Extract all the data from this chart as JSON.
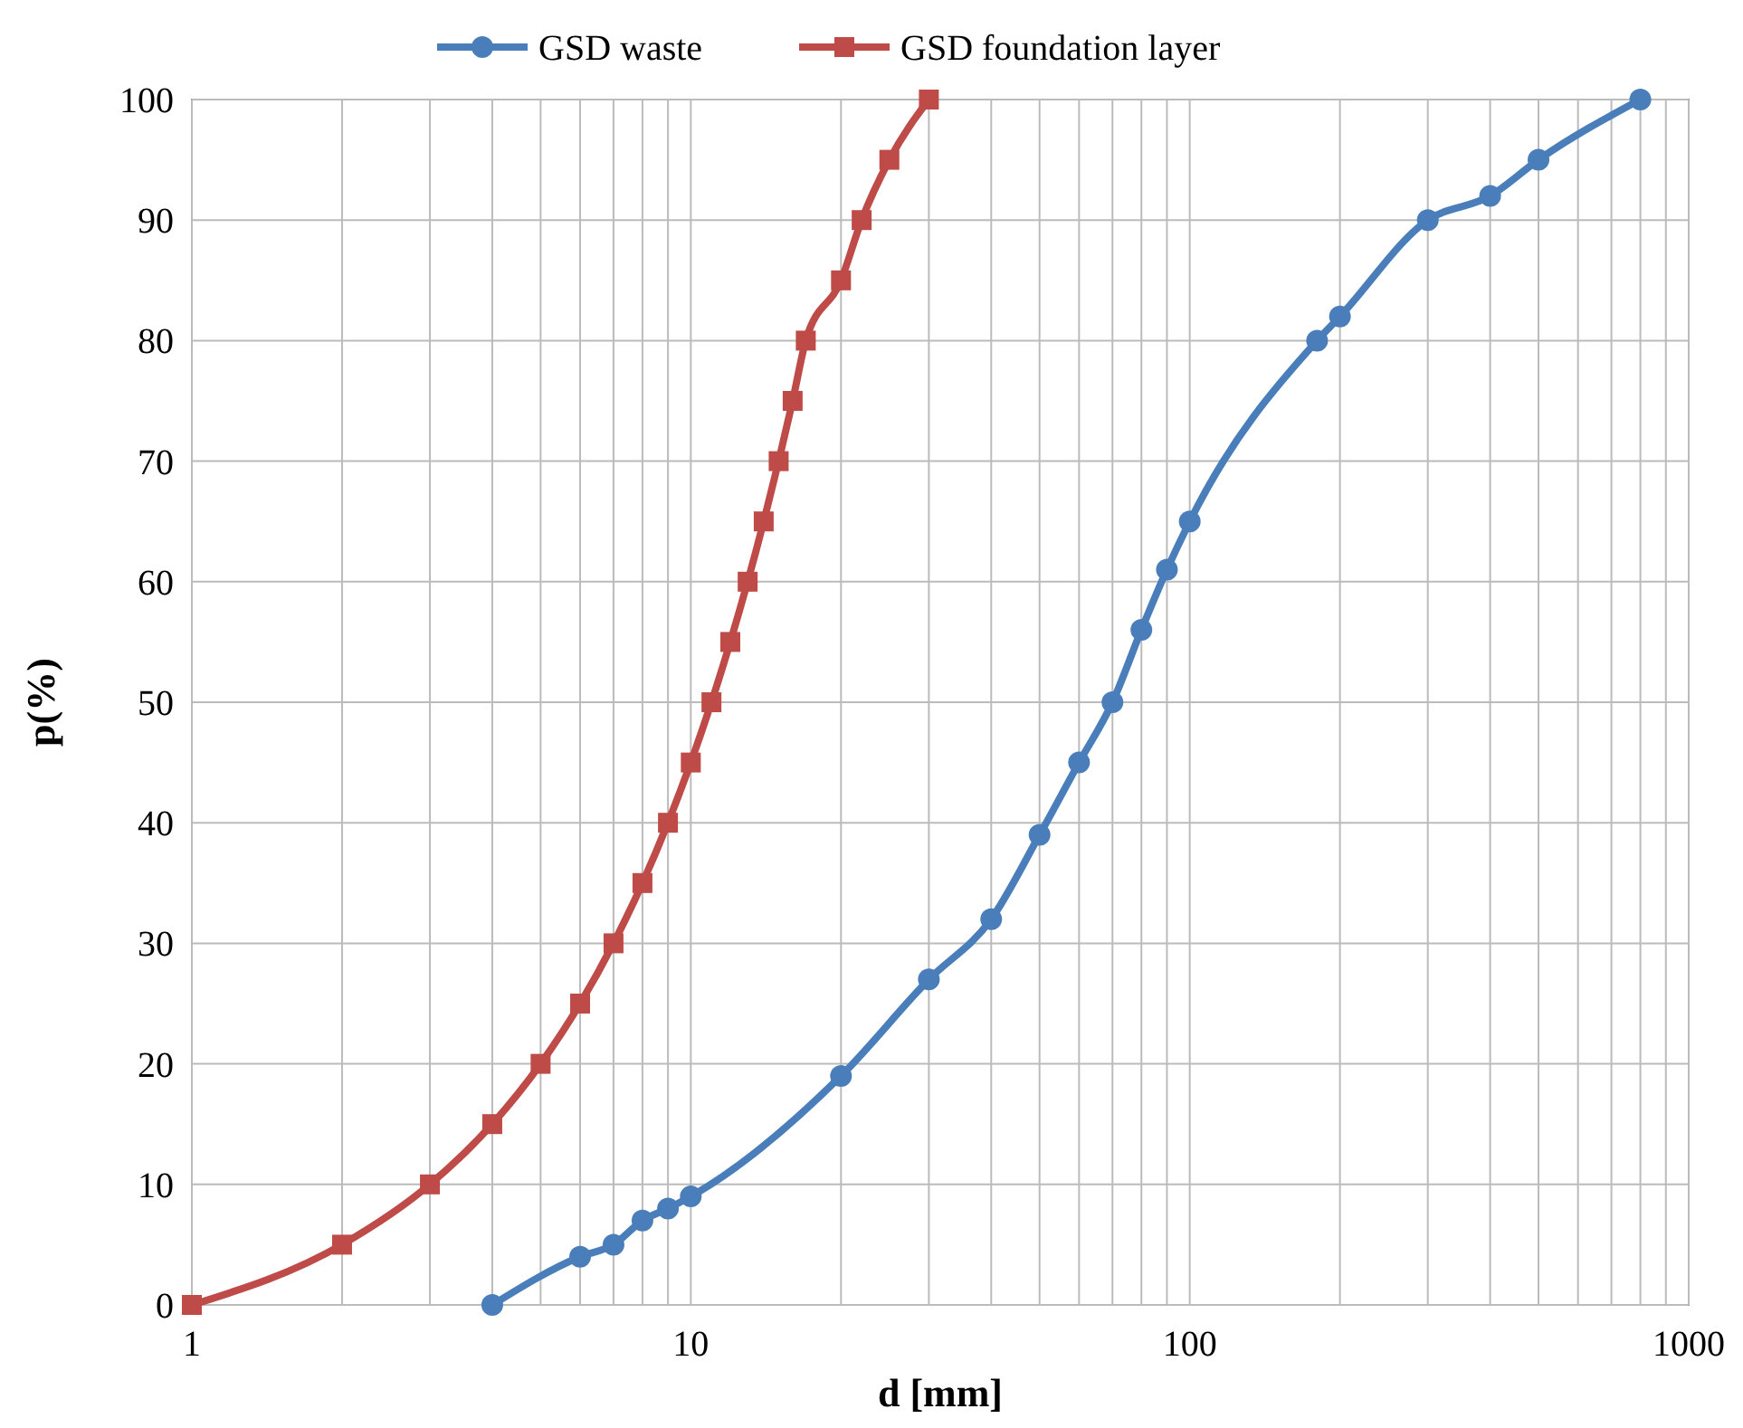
{
  "chart_data": {
    "type": "line",
    "xlabel": "d [mm]",
    "ylabel": "p(%)",
    "log": "x",
    "grid": true,
    "legend": "top",
    "xlim": [
      1,
      1000
    ],
    "xticks": [
      1,
      {
        "value": 2,
        "label": null
      },
      {
        "value": 3,
        "label": null
      },
      {
        "value": 4,
        "label": null
      },
      {
        "value": 5,
        "label": null
      },
      {
        "value": 6,
        "label": null
      },
      {
        "value": 7,
        "label": null
      },
      {
        "value": 8,
        "label": null
      },
      {
        "value": 9,
        "label": null
      },
      10,
      {
        "value": 20,
        "label": null
      },
      {
        "value": 30,
        "label": null
      },
      {
        "value": 40,
        "label": null
      },
      {
        "value": 50,
        "label": null
      },
      {
        "value": 60,
        "label": null
      },
      {
        "value": 70,
        "label": null
      },
      {
        "value": 80,
        "label": null
      },
      {
        "value": 90,
        "label": null
      },
      100,
      {
        "value": 200,
        "label": null
      },
      {
        "value": 300,
        "label": null
      },
      {
        "value": 400,
        "label": null
      },
      {
        "value": 500,
        "label": null
      },
      {
        "value": 600,
        "label": null
      },
      {
        "value": 700,
        "label": null
      },
      {
        "value": 800,
        "label": null
      },
      {
        "value": 900,
        "label": null
      },
      1000
    ],
    "ylim": [
      0,
      100
    ],
    "yticks": [
      0,
      10,
      20,
      30,
      40,
      50,
      60,
      70,
      80,
      90,
      100
    ],
    "series": [
      {
        "name": "GSD waste",
        "color": "#4a7ebb",
        "marker": "circle",
        "x": [
          4,
          6,
          7,
          8,
          9,
          10,
          20,
          30,
          40,
          50,
          60,
          70,
          80,
          90,
          100,
          180,
          200,
          300,
          400,
          500,
          800
        ],
        "values": [
          0,
          4,
          5,
          7,
          8,
          9,
          19,
          27,
          32,
          39,
          45,
          50,
          56,
          61,
          65,
          80,
          82,
          90,
          92,
          95,
          100
        ]
      },
      {
        "name": "GSD foundation layer",
        "color": "#be4b48",
        "marker": "square",
        "x": [
          1,
          2,
          3,
          4,
          5,
          6,
          7,
          8,
          9,
          10,
          11,
          12,
          13,
          14,
          15,
          16,
          17,
          20,
          22,
          25,
          30
        ],
        "values": [
          0,
          5,
          10,
          15,
          20,
          25,
          30,
          35,
          40,
          45,
          50,
          55,
          60,
          65,
          70,
          75,
          80,
          85,
          90,
          95,
          100
        ]
      }
    ]
  }
}
